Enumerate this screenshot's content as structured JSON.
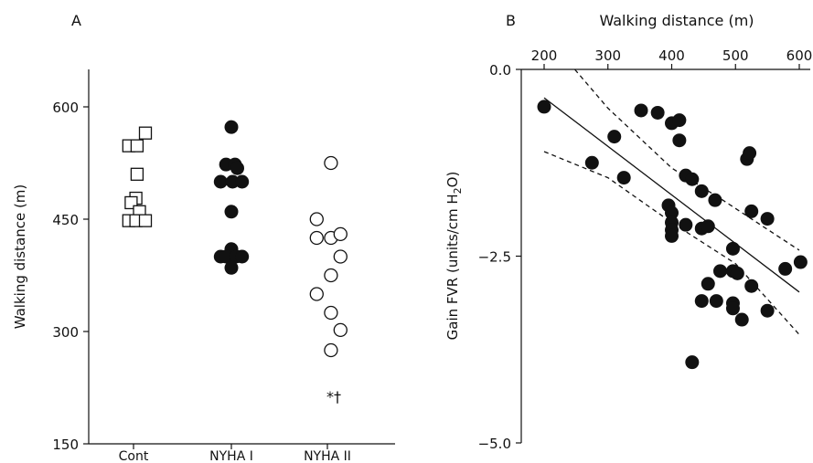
{
  "chart_data": [
    {
      "panel": "A",
      "type": "scatter",
      "ylabel": "Walking distance (m)",
      "ylim": [
        150,
        650
      ],
      "yticks": [
        150,
        300,
        450,
        600
      ],
      "categories": [
        "Cont",
        "NYHA I",
        "NYHA II"
      ],
      "annotation": "*†",
      "series": [
        {
          "marker": "square-open",
          "category": "Cont",
          "points": [
            [
              -0.4,
              548
            ],
            [
              0.3,
              548
            ],
            [
              1.0,
              565
            ],
            [
              0.3,
              510
            ],
            [
              0.2,
              478
            ],
            [
              -0.2,
              472
            ],
            [
              0.5,
              460
            ],
            [
              -0.4,
              448
            ],
            [
              0.2,
              448
            ],
            [
              1.0,
              448
            ]
          ]
        },
        {
          "marker": "circle-filled",
          "category": "NYHA I",
          "points": [
            [
              0,
              573
            ],
            [
              -0.45,
              523
            ],
            [
              0.3,
              523
            ],
            [
              0.5,
              518
            ],
            [
              -0.9,
              500
            ],
            [
              0.1,
              500
            ],
            [
              0.9,
              500
            ],
            [
              0,
              460
            ],
            [
              0,
              410
            ],
            [
              -0.9,
              400
            ],
            [
              -0.45,
              400
            ],
            [
              0.4,
              400
            ],
            [
              0.9,
              400
            ],
            [
              0,
              385
            ]
          ]
        },
        {
          "marker": "circle-open",
          "category": "NYHA II",
          "points": [
            [
              0.3,
              525
            ],
            [
              -0.9,
              450
            ],
            [
              -0.9,
              425
            ],
            [
              0.3,
              425
            ],
            [
              1.1,
              430
            ],
            [
              1.1,
              400
            ],
            [
              0.3,
              375
            ],
            [
              -0.9,
              350
            ],
            [
              0.3,
              325
            ],
            [
              1.1,
              302
            ],
            [
              0.3,
              275
            ]
          ]
        }
      ]
    },
    {
      "panel": "B",
      "type": "scatter",
      "xlabel": "Walking distance (m)",
      "ylabel_prefix": "Gain FVR (units/cm H",
      "ylabel_sub": "2",
      "ylabel_suffix": "O)",
      "xlim": [
        170,
        605
      ],
      "ylim": [
        -5.0,
        0.0
      ],
      "xticks": [
        200,
        300,
        400,
        500,
        600
      ],
      "yticks": [
        0.0,
        -2.5,
        -5.0
      ],
      "ytick_labels": [
        "0.0",
        "−2.5",
        "−5.0"
      ],
      "points": [
        [
          200,
          -0.5
        ],
        [
          275,
          -1.25
        ],
        [
          310,
          -0.9
        ],
        [
          325,
          -1.45
        ],
        [
          352,
          -0.55
        ],
        [
          378,
          -0.58
        ],
        [
          395,
          -1.82
        ],
        [
          400,
          -0.72
        ],
        [
          400,
          -1.92
        ],
        [
          400,
          -2.05
        ],
        [
          400,
          -2.15
        ],
        [
          400,
          -2.23
        ],
        [
          412,
          -0.68
        ],
        [
          412,
          -0.95
        ],
        [
          422,
          -1.42
        ],
        [
          422,
          -2.08
        ],
        [
          432,
          -1.47
        ],
        [
          432,
          -3.92
        ],
        [
          447,
          -1.63
        ],
        [
          447,
          -2.13
        ],
        [
          447,
          -3.1
        ],
        [
          457,
          -2.1
        ],
        [
          457,
          -2.87
        ],
        [
          468,
          -1.75
        ],
        [
          470,
          -3.1
        ],
        [
          476,
          -2.7
        ],
        [
          496,
          -2.4
        ],
        [
          496,
          -2.7
        ],
        [
          496,
          -3.13
        ],
        [
          496,
          -3.2
        ],
        [
          503,
          -2.73
        ],
        [
          510,
          -3.35
        ],
        [
          518,
          -1.2
        ],
        [
          522,
          -1.12
        ],
        [
          525,
          -2.9
        ],
        [
          525,
          -1.9
        ],
        [
          550,
          -2.0
        ],
        [
          550,
          -3.23
        ],
        [
          578,
          -2.67
        ],
        [
          602,
          -2.58
        ]
      ],
      "regression": [
        [
          200,
          -0.38
        ],
        [
          600,
          -2.98
        ]
      ],
      "ci_upper": [
        [
          248,
          0.0
        ],
        [
          300,
          -0.52
        ],
        [
          400,
          -1.32
        ],
        [
          480,
          -1.75
        ],
        [
          600,
          -2.42
        ]
      ],
      "ci_lower": [
        [
          200,
          -1.1
        ],
        [
          300,
          -1.45
        ],
        [
          400,
          -2.05
        ],
        [
          500,
          -2.6
        ],
        [
          600,
          -3.55
        ]
      ]
    }
  ]
}
